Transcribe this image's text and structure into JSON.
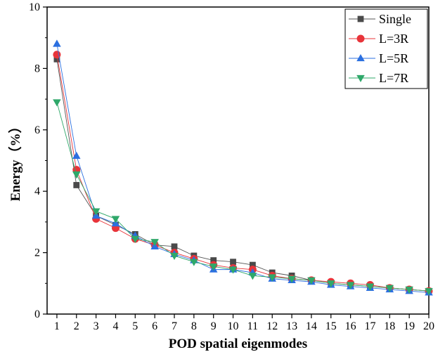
{
  "chart_data": {
    "type": "line",
    "title": "",
    "xlabel": "POD spatial eigenmodes",
    "ylabel": "Energy（%）",
    "xlim": [
      0.5,
      20
    ],
    "ylim": [
      0,
      10
    ],
    "x": [
      1,
      2,
      3,
      4,
      5,
      6,
      7,
      8,
      9,
      10,
      11,
      12,
      13,
      14,
      15,
      16,
      17,
      18,
      19,
      20
    ],
    "x_ticks": [
      "1",
      "2",
      "3",
      "4",
      "5",
      "6",
      "7",
      "8",
      "9",
      "10",
      "11",
      "12",
      "13",
      "14",
      "15",
      "16",
      "17",
      "18",
      "19",
      "20"
    ],
    "y_ticks": [
      "0",
      "2",
      "4",
      "6",
      "8",
      "10"
    ],
    "legend_position": "top-right",
    "series": [
      {
        "name": "Single",
        "marker": "square",
        "color": "#4a4a4a",
        "line_color": "#555555",
        "values": [
          8.3,
          4.2,
          3.2,
          2.9,
          2.6,
          2.25,
          2.2,
          1.9,
          1.75,
          1.7,
          1.6,
          1.35,
          1.25,
          1.1,
          1.0,
          0.95,
          0.9,
          0.85,
          0.8,
          0.75
        ]
      },
      {
        "name": "L=3R",
        "marker": "circle",
        "color": "#e8343a",
        "line_color": "#e8343a",
        "values": [
          8.45,
          4.7,
          3.1,
          2.8,
          2.45,
          2.25,
          2.0,
          1.8,
          1.6,
          1.5,
          1.45,
          1.25,
          1.15,
          1.1,
          1.05,
          1.0,
          0.95,
          0.85,
          0.8,
          0.75
        ]
      },
      {
        "name": "L=5R",
        "marker": "triangle-up",
        "color": "#2b6fe0",
        "line_color": "#2b6fe0",
        "values": [
          8.8,
          5.15,
          3.2,
          2.95,
          2.55,
          2.2,
          1.95,
          1.75,
          1.45,
          1.45,
          1.35,
          1.15,
          1.1,
          1.05,
          0.95,
          0.9,
          0.85,
          0.8,
          0.75,
          0.7
        ]
      },
      {
        "name": "L=7R",
        "marker": "triangle-down",
        "color": "#2fa86a",
        "line_color": "#2fa86a",
        "values": [
          6.9,
          4.55,
          3.35,
          3.1,
          2.45,
          2.35,
          1.9,
          1.7,
          1.55,
          1.45,
          1.25,
          1.2,
          1.15,
          1.1,
          1.0,
          0.95,
          0.9,
          0.85,
          0.8,
          0.75
        ]
      }
    ]
  }
}
